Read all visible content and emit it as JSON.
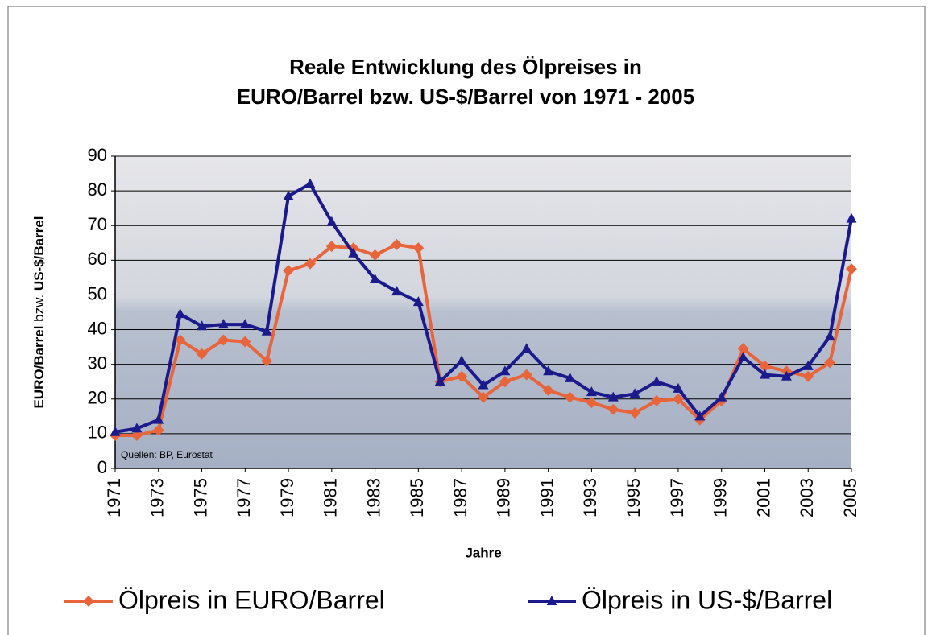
{
  "chart_data": {
    "type": "line",
    "title": [
      "Reale Entwicklung des Ölpreises in",
      "EURO/Barrel bzw. US-$/Barrel von 1971 - 2005"
    ],
    "ylabel": [
      "EURO/Barrel",
      "bzw.",
      "US-$/Barrel"
    ],
    "xlabel": "Jahre",
    "annotation": "Quellen: BP, Eurostat",
    "x": [
      1971,
      1972,
      1973,
      1974,
      1975,
      1976,
      1977,
      1978,
      1979,
      1980,
      1981,
      1982,
      1983,
      1984,
      1985,
      1986,
      1987,
      1988,
      1989,
      1990,
      1991,
      1992,
      1993,
      1994,
      1995,
      1996,
      1997,
      1998,
      1999,
      2000,
      2001,
      2002,
      2003,
      2004,
      2005
    ],
    "series": [
      {
        "name": "Ölpreis in EURO/Barrel",
        "color": "#e8643a",
        "marker": "diamond",
        "values": [
          9.5,
          9.5,
          11,
          37,
          33,
          37,
          36.5,
          31,
          57,
          59,
          64,
          63.5,
          61.5,
          64.5,
          63.5,
          25,
          26.5,
          20.5,
          25,
          27,
          22.5,
          20.5,
          19,
          17,
          16,
          19.5,
          20,
          14,
          19.5,
          34.5,
          29.5,
          28,
          26.5,
          30.5,
          57.5
        ]
      },
      {
        "name": "Ölpreis in US-$/Barrel",
        "color": "#1a1a8c",
        "marker": "triangle",
        "values": [
          10.5,
          11.5,
          14,
          44.5,
          41,
          41.5,
          41.5,
          39.5,
          78.5,
          82,
          71,
          62,
          54.5,
          51,
          48,
          25,
          31,
          24,
          28,
          34.5,
          28,
          26,
          22,
          20.5,
          21.5,
          25,
          23,
          15,
          20.5,
          32,
          27,
          26.5,
          29.5,
          38,
          72
        ]
      }
    ],
    "xlim": [
      1971,
      2005
    ],
    "xticks": [
      1971,
      1973,
      1975,
      1977,
      1979,
      1981,
      1983,
      1985,
      1987,
      1989,
      1991,
      1993,
      1995,
      1997,
      1999,
      2001,
      2003,
      2005
    ],
    "ylim": [
      0,
      90
    ],
    "yticks": [
      0,
      10,
      20,
      30,
      40,
      50,
      60,
      70,
      80,
      90
    ],
    "grid": true,
    "legend": "bottom"
  }
}
